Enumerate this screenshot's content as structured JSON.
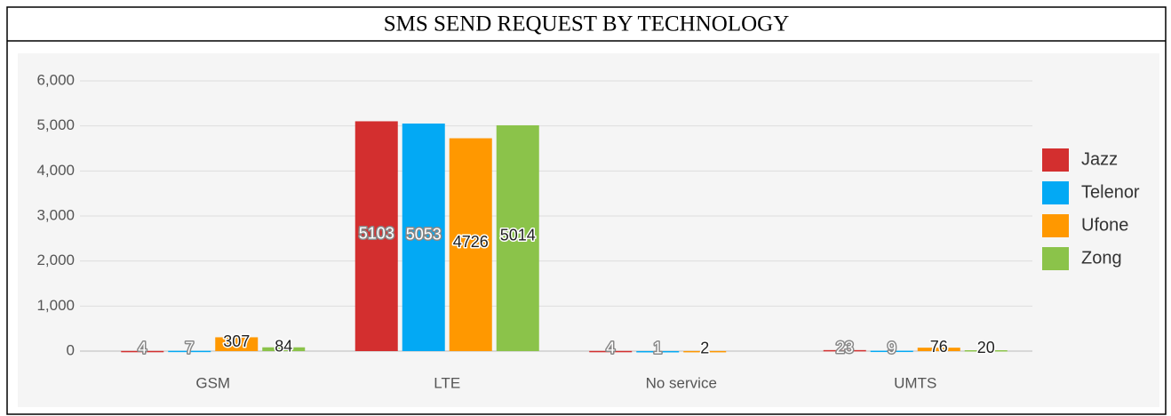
{
  "chart_data": {
    "type": "bar",
    "title": "SMS SEND REQUEST BY TECHNOLOGY",
    "categories": [
      "GSM",
      "LTE",
      "No service",
      "UMTS"
    ],
    "series": [
      {
        "name": "Jazz",
        "color": "#d32f2f",
        "values": [
          4,
          5103,
          4,
          23
        ]
      },
      {
        "name": "Telenor",
        "color": "#03a9f4",
        "values": [
          7,
          5053,
          1,
          9
        ]
      },
      {
        "name": "Ufone",
        "color": "#ff9800",
        "values": [
          307,
          4726,
          2,
          76
        ]
      },
      {
        "name": "Zong",
        "color": "#8bc34a",
        "values": [
          84,
          5014,
          null,
          20
        ]
      }
    ],
    "ylim": [
      0,
      6000
    ],
    "yticks": [
      0,
      {
        "value": 1000,
        "label": "1,000"
      },
      {
        "value": 2000,
        "label": "2,000"
      },
      {
        "value": 3000,
        "label": "3,000"
      },
      {
        "value": 4000,
        "label": "4,000"
      },
      {
        "value": 5000,
        "label": "5,000"
      },
      {
        "value": 6000,
        "label": "6,000"
      }
    ],
    "grid": true,
    "legend": "right"
  }
}
